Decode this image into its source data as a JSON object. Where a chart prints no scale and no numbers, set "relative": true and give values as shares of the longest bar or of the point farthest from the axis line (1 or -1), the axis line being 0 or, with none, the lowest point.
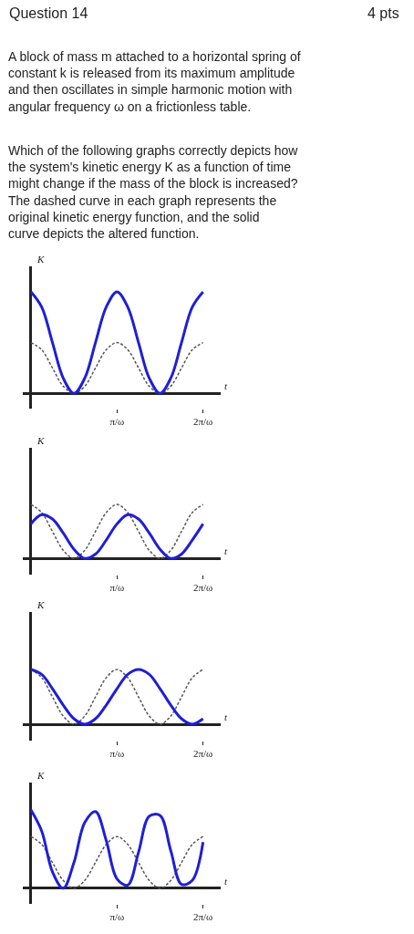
{
  "chart_data": [
    {
      "type": "other",
      "title": "Question 14",
      "annotations": [
        "4 pts",
        "A block of mass m attached to a horizontal spring of constant k is released from its maximum amplitude and then oscillates in simple harmonic motion with angular frequency ω on a frictionless table.",
        "Which of the following graphs correctly depicts how the system's kinetic energy K as a function of time might change if the mass of the block is increased? The dashed curve in each graph represents the original kinetic energy function, and the solid curve depicts the altered function."
      ]
    },
    {
      "type": "line",
      "relative": true,
      "xlabel": "t",
      "ylabel": "K",
      "categories": [
        null,
        null,
        null,
        null,
        null,
        null,
        null,
        null,
        "π/ω",
        null,
        null,
        null,
        null,
        null,
        null,
        null,
        "2π/ω"
      ],
      "tick_labels": "x",
      "series": [
        {
          "color": "#555555",
          "line_style": "dashed",
          "values": [
            0.5,
            0.43,
            0.25,
            0.07,
            0,
            0.07,
            0.25,
            0.43,
            0.5,
            0.43,
            0.25,
            0.07,
            0,
            0.07,
            0.25,
            0.43,
            0.5
          ]
        },
        {
          "color": "#1f1fd6",
          "line_style": "solid",
          "values": [
            1,
            0.85,
            0.5,
            0.15,
            0,
            0.15,
            0.5,
            0.85,
            1,
            0.85,
            0.5,
            0.15,
            0,
            0.15,
            0.5,
            0.85,
            1
          ]
        }
      ]
    },
    {
      "type": "line",
      "relative": true,
      "xlabel": "t",
      "ylabel": "K",
      "categories": [
        null,
        null,
        null,
        null,
        null,
        null,
        null,
        null,
        "π/ω",
        null,
        null,
        null,
        null,
        null,
        null,
        null,
        "2π/ω"
      ],
      "tick_labels": "x",
      "series": [
        {
          "color": "#555555",
          "line_style": "dashed",
          "values": [
            1,
            0.85,
            0.5,
            0.15,
            0,
            0.15,
            0.5,
            0.85,
            1,
            0.85,
            0.5,
            0.15,
            0,
            0.15,
            0.5,
            0.85,
            1
          ]
        },
        {
          "color": "#1f1fd6",
          "line_style": "solid",
          "values": [
            0.64,
            0.81,
            0.73,
            0.47,
            0.17,
            0,
            0.08,
            0.34,
            0.64,
            0.81,
            0.73,
            0.47,
            0.17,
            0,
            0.08,
            0.34,
            0.64
          ]
        }
      ]
    },
    {
      "type": "line",
      "relative": true,
      "xlabel": "t",
      "ylabel": "K",
      "categories": [
        null,
        null,
        null,
        null,
        null,
        null,
        null,
        null,
        "π/ω",
        null,
        null,
        null,
        null,
        null,
        null,
        null,
        "2π/ω"
      ],
      "tick_labels": "x",
      "series": [
        {
          "color": "#555555",
          "line_style": "dashed",
          "values": [
            1,
            0.85,
            0.5,
            0.15,
            0,
            0.15,
            0.5,
            0.85,
            1,
            0.85,
            0.5,
            0.15,
            0,
            0.15,
            0.5,
            0.85,
            1
          ]
        },
        {
          "color": "#1f1fd6",
          "line_style": "solid",
          "values": [
            1,
            0.91,
            0.65,
            0.35,
            0.1,
            0,
            0.1,
            0.35,
            0.65,
            0.91,
            1,
            0.91,
            0.65,
            0.35,
            0.1,
            0,
            0.1
          ]
        }
      ]
    },
    {
      "type": "line",
      "relative": true,
      "xlabel": "t",
      "ylabel": "K",
      "categories": [
        null,
        null,
        null,
        null,
        null,
        null,
        null,
        null,
        "π/ω",
        null,
        null,
        null,
        null,
        null,
        null,
        null,
        "2π/ω"
      ],
      "tick_labels": "x",
      "series": [
        {
          "color": "#555555",
          "line_style": "dashed",
          "values": [
            0.66,
            0.56,
            0.33,
            0.1,
            0,
            0.1,
            0.33,
            0.56,
            0.66,
            0.56,
            0.33,
            0.1,
            0,
            0.1,
            0.33,
            0.56,
            0.66
          ]
        },
        {
          "color": "#1f1fd6",
          "line_style": "solid",
          "values": [
            1,
            0.73,
            0.21,
            0,
            0.33,
            0.84,
            0.98,
            0.61,
            0.12,
            0.04,
            0.46,
            0.92,
            0.93,
            0.48,
            0.05,
            0.1,
            0.59
          ]
        }
      ]
    }
  ]
}
